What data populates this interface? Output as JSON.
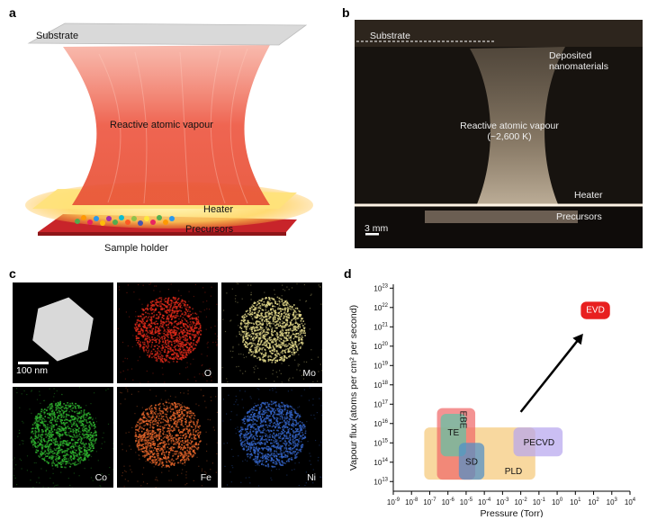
{
  "panel_a": {
    "letter": "a",
    "substrate": "Substrate",
    "vapour": "Reactive atomic vapour",
    "heater": "Heater",
    "precursors": "Precursors",
    "holder": "Sample holder"
  },
  "panel_b": {
    "letter": "b",
    "substrate": "Substrate",
    "deposited_line1": "Deposited",
    "deposited_line2": "nanomaterials",
    "vapour_line1": "Reactive atomic vapour",
    "vapour_line2": "(~2,600 K)",
    "heater": "Heater",
    "precursors": "Precursors",
    "scale": "3 mm"
  },
  "panel_c": {
    "letter": "c",
    "scale": "100 nm",
    "tiles": [
      {
        "label": "",
        "color": "#d9d9d9"
      },
      {
        "label": "O",
        "color": "#e02a1a"
      },
      {
        "label": "Mo",
        "color": "#e6dc8c"
      },
      {
        "label": "Co",
        "color": "#2fb52f"
      },
      {
        "label": "Fe",
        "color": "#e2642a"
      },
      {
        "label": "Ni",
        "color": "#3464c8"
      }
    ]
  },
  "panel_d": {
    "letter": "d"
  },
  "chart_data": {
    "type": "other",
    "xlabel": "Pressure (Torr)",
    "ylabel": "Vapour flux (atoms per cm² per second)",
    "xscale": "log",
    "yscale": "log",
    "xlim_exp": [
      -9,
      4
    ],
    "ylim_exp": [
      12.5,
      23.2
    ],
    "x_tick_exponents": [
      -9,
      -8,
      -7,
      -6,
      -5,
      -4,
      -3,
      -2,
      -1,
      0,
      1,
      2,
      3,
      4
    ],
    "y_tick_exponents": [
      13,
      14,
      15,
      16,
      17,
      18,
      19,
      20,
      21,
      22,
      23
    ],
    "regions": [
      {
        "name": "PLD",
        "x_exp": [
          -7.3,
          -1.2
        ],
        "y_exp": [
          13.1,
          15.8
        ],
        "color": "#f5c97a"
      },
      {
        "name": "EBE",
        "x_exp": [
          -6.6,
          -4.5
        ],
        "y_exp": [
          13.1,
          16.8
        ],
        "color": "#f06a6a"
      },
      {
        "name": "TE",
        "x_exp": [
          -6.4,
          -5.0
        ],
        "y_exp": [
          14.3,
          16.5
        ],
        "color": "#5fc4a6"
      },
      {
        "name": "SD",
        "x_exp": [
          -5.4,
          -4.0
        ],
        "y_exp": [
          13.1,
          15.0
        ],
        "color": "#4f8fc8"
      },
      {
        "name": "PECVD",
        "x_exp": [
          -2.4,
          0.3
        ],
        "y_exp": [
          14.3,
          15.8
        ],
        "color": "#b7a6ef"
      },
      {
        "name": "EVD",
        "x_exp": [
          1.3,
          2.9
        ],
        "y_exp": [
          21.4,
          22.3
        ],
        "color": "#e82020"
      }
    ],
    "arrow": {
      "from_exp": [
        -2.0,
        16.6
      ],
      "to_exp": [
        1.3,
        20.5
      ]
    }
  }
}
